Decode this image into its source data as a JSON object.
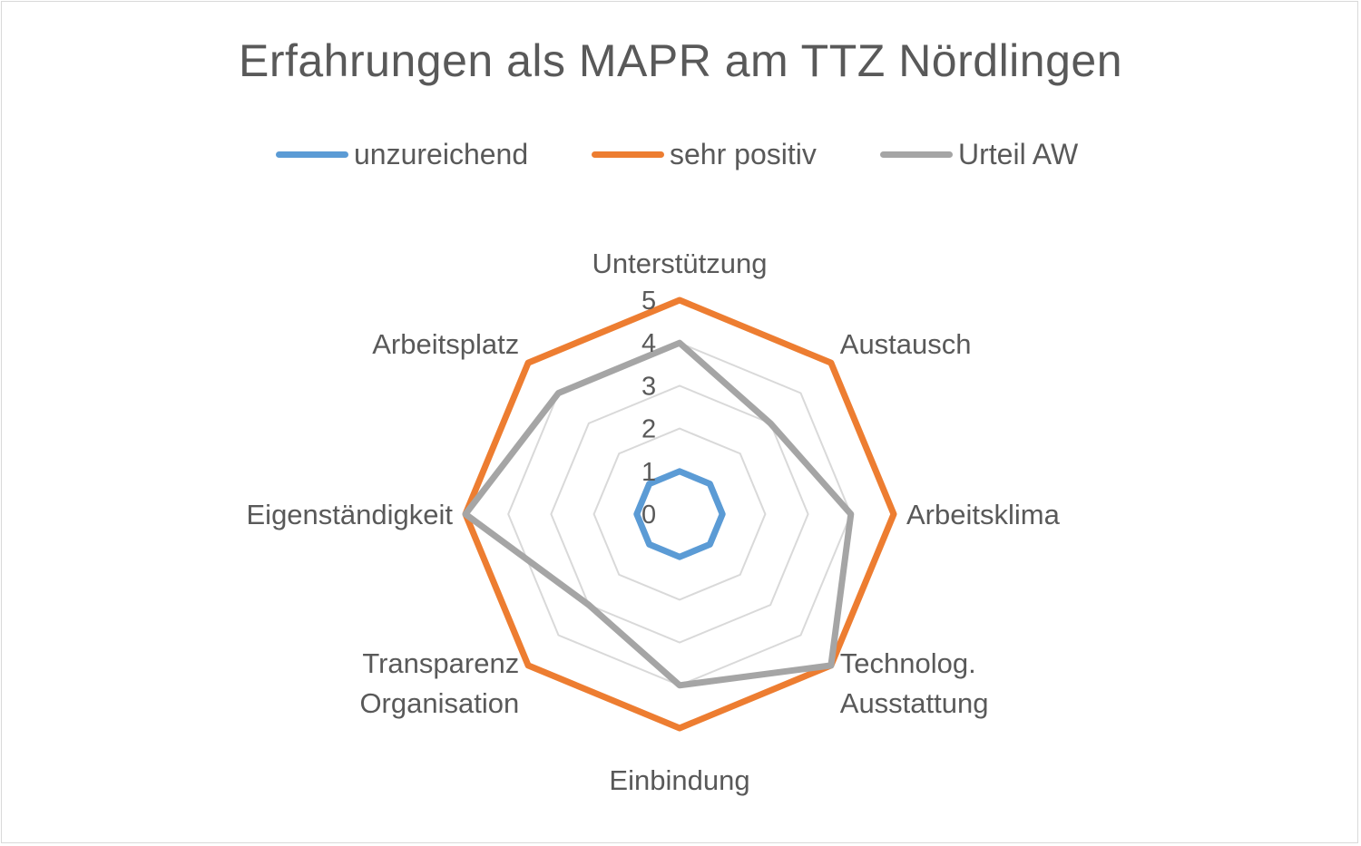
{
  "chart_data": {
    "type": "radar",
    "title": "Erfahrungen als MAPR am TTZ Nördlingen",
    "categories": [
      [
        "Unterstützung"
      ],
      [
        "Austausch"
      ],
      [
        "Arbeitsklima"
      ],
      [
        "Technolog.",
        "Ausstattung"
      ],
      [
        "Einbindung"
      ],
      [
        "Transparenz",
        "Organisation"
      ],
      [
        "Eigenständigkeit"
      ],
      [
        "Arbeitsplatz"
      ]
    ],
    "rlim": [
      0,
      5
    ],
    "ticks": [
      "0",
      "1",
      "2",
      "3",
      "4",
      "5"
    ],
    "grid": true,
    "legend_position": "top",
    "series": [
      {
        "name": "unzureichend",
        "color": "#5b9bd5",
        "values": [
          1,
          1,
          1,
          1,
          1,
          1,
          1,
          1
        ]
      },
      {
        "name": "sehr positiv",
        "color": "#ed7d31",
        "values": [
          5,
          5,
          5,
          5,
          5,
          5,
          5,
          5
        ]
      },
      {
        "name": "Urteil AW",
        "color": "#a5a5a5",
        "values": [
          4,
          3,
          4,
          5,
          4,
          3,
          5,
          4
        ]
      }
    ]
  }
}
